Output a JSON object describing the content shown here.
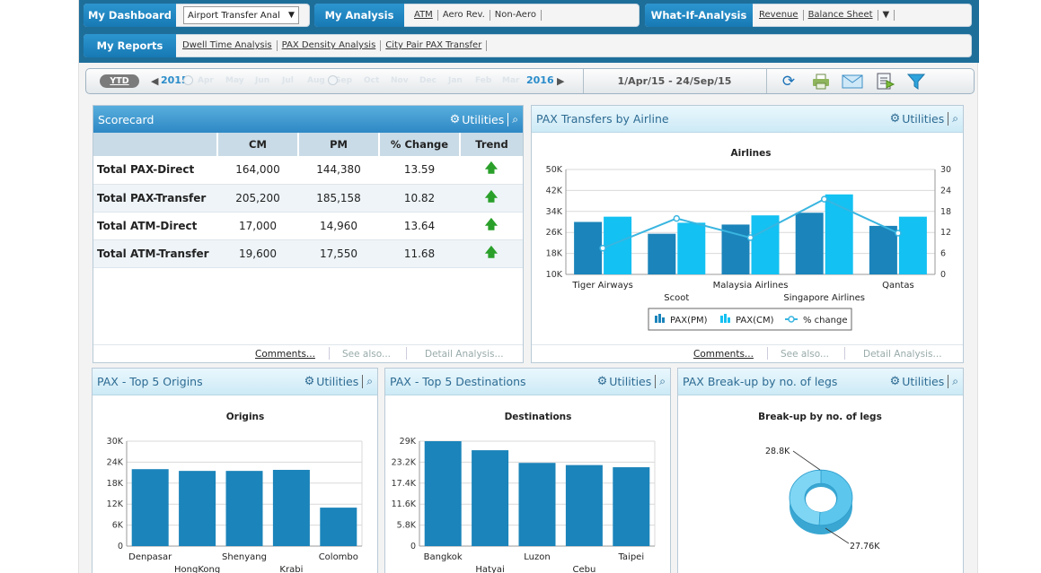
{
  "nav": {
    "dashboard": {
      "label": "My Dashboard",
      "select_value": "Airport Transfer Anal"
    },
    "analysis": {
      "label": "My Analysis",
      "links": [
        "ATM",
        "Aero Rev.",
        "Non-Aero"
      ]
    },
    "whatif": {
      "label": "What-If-Analysis",
      "links": [
        "Revenue",
        "Balance Sheet"
      ]
    },
    "reports": {
      "label": "My Reports",
      "links": [
        "Dwell Time Analysis",
        "PAX Density Analysis",
        "City Pair PAX Transfer"
      ]
    }
  },
  "datebar": {
    "ytd": "YTD",
    "year_start": "2015",
    "months": [
      "Apr",
      "May",
      "Jun",
      "Jul",
      "Aug",
      "Sep",
      "Oct",
      "Nov",
      "Dec",
      "Jan",
      "Feb",
      "Mar"
    ],
    "year_end": "2016",
    "range": "1/Apr/15 - 24/Sep/15",
    "tools": [
      "refresh-icon",
      "print-icon",
      "email-icon",
      "export-icon",
      "filter-icon"
    ]
  },
  "utilities_label": "Utilities",
  "scorecard": {
    "title": "Scorecard",
    "columns": [
      "",
      "CM",
      "PM",
      "% Change",
      "Trend"
    ],
    "rows": [
      {
        "label": "Total PAX-Direct",
        "cm": "164,000",
        "pm": "144,380",
        "change": "13.59",
        "trend": "up"
      },
      {
        "label": "Total PAX-Transfer",
        "cm": "205,200",
        "pm": "185,158",
        "change": "10.82",
        "trend": "up"
      },
      {
        "label": "Total ATM-Direct",
        "cm": "17,000",
        "pm": "14,960",
        "change": "13.64",
        "trend": "up"
      },
      {
        "label": "Total ATM-Transfer",
        "cm": "19,600",
        "pm": "17,550",
        "change": "11.68",
        "trend": "up"
      }
    ],
    "footer": [
      "Comments...",
      "See also...",
      "Detail Analysis..."
    ]
  },
  "airline_panel": {
    "title": "PAX Transfers by Airline",
    "footer": [
      "Comments...",
      "See also...",
      "Detail Analysis..."
    ]
  },
  "origins_panel": {
    "title": "PAX - Top 5 Origins"
  },
  "destinations_panel": {
    "title": "PAX - Top 5 Destinations"
  },
  "legs_panel": {
    "title": "PAX Break-up by no. of legs"
  },
  "chart_data": [
    {
      "type": "bar",
      "title": "Airlines",
      "categories": [
        "Tiger Airways",
        "Scoot",
        "Malaysia Airlines",
        "Singapore Airlines",
        "Qantas"
      ],
      "series": [
        {
          "name": "PAX(PM)",
          "values": [
            30000,
            25500,
            29000,
            33500,
            28500
          ]
        },
        {
          "name": "PAX(CM)",
          "values": [
            32000,
            29700,
            32500,
            40500,
            32000
          ]
        },
        {
          "name": "% change",
          "type": "line",
          "axis": "right",
          "values": [
            7.5,
            16,
            10.5,
            21.5,
            11.8
          ]
        }
      ],
      "y_ticks": [
        "10K",
        "18K",
        "26K",
        "34K",
        "42K",
        "50K"
      ],
      "ylim": [
        10000,
        50000
      ],
      "y2_ticks": [
        "0",
        "6",
        "12",
        "18",
        "24",
        "30"
      ],
      "y2lim": [
        0,
        30
      ],
      "legend": "bottom",
      "colors": {
        "pm": "#1b84ba",
        "cm": "#13c1f2",
        "line": "#39b5e0"
      }
    },
    {
      "type": "bar",
      "title": "Origins",
      "categories": [
        "Denpasar",
        "HongKong",
        "Shenyang",
        "Krabi",
        "Colombo"
      ],
      "values": [
        22000,
        21500,
        21500,
        21800,
        11000
      ],
      "y_ticks": [
        "0",
        "6K",
        "12K",
        "18K",
        "24K",
        "30K"
      ],
      "ylim": [
        0,
        30000
      ]
    },
    {
      "type": "bar",
      "title": "Destinations",
      "categories": [
        "Bangkok",
        "Hatyai",
        "Luzon",
        "Cebu",
        "Taipei"
      ],
      "values": [
        29000,
        26500,
        23000,
        22400,
        21800
      ],
      "y_ticks": [
        "0",
        "5.8K",
        "11.6K",
        "17.4K",
        "23.2K",
        "29K"
      ],
      "ylim": [
        0,
        29000
      ]
    },
    {
      "type": "pie",
      "title": "Break-up by no. of legs",
      "labels": [
        "28.8K",
        "27.76K"
      ],
      "values": [
        28800,
        27760
      ]
    }
  ]
}
